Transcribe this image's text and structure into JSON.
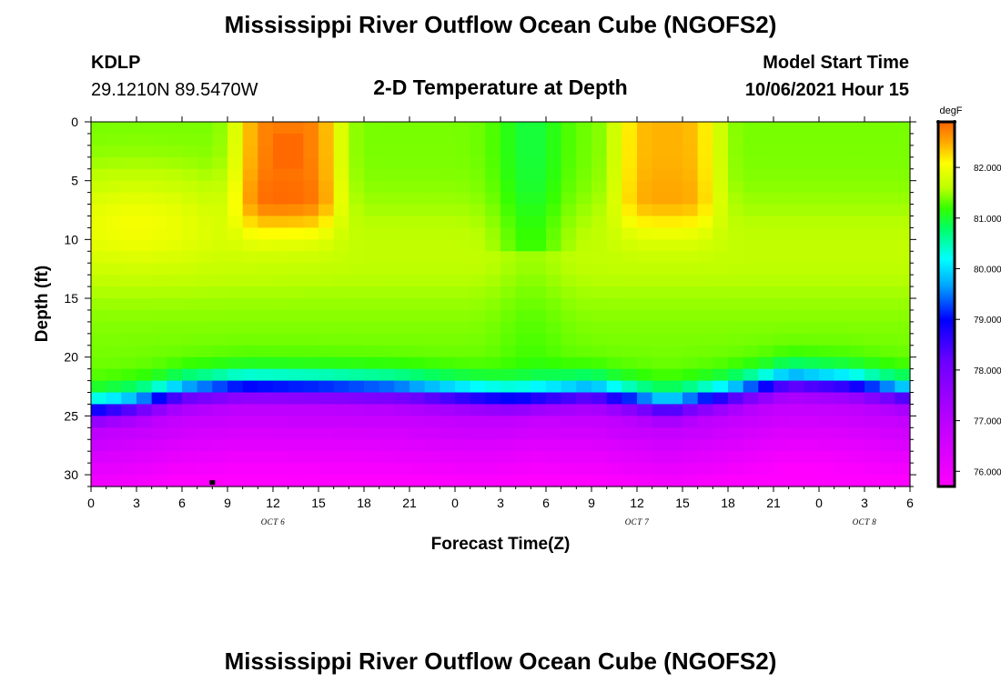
{
  "page": {
    "title_top": "Mississippi River Outflow Ocean Cube (NGOFS2)",
    "title_bottom": "Mississippi River Outflow Ocean Cube (NGOFS2)",
    "station_id": "KDLP",
    "station_coords": "29.1210N  89.5470W",
    "subtitle": "2-D Temperature at Depth",
    "model_start_label": "Model Start Time",
    "model_start_value": "10/06/2021 Hour 15"
  },
  "chart_data": {
    "type": "heatmap",
    "title": "2-D Temperature at Depth",
    "xlabel": "Forecast Time(Z)",
    "ylabel": "Depth (ft)",
    "x_range_hours": [
      0,
      54
    ],
    "y_range_ft": [
      0,
      31
    ],
    "x_tick_hours": [
      0,
      3,
      6,
      9,
      12,
      15,
      18,
      21,
      24,
      27,
      30,
      33,
      36,
      39,
      42,
      45,
      48,
      51,
      54
    ],
    "x_tick_labels": [
      "0",
      "3",
      "6",
      "9",
      "12",
      "15",
      "18",
      "21",
      "0",
      "3",
      "6",
      "9",
      "12",
      "15",
      "18",
      "21",
      "0",
      "3",
      "6"
    ],
    "date_labels": [
      {
        "hour": 12,
        "text": "OCT 6"
      },
      {
        "hour": 36,
        "text": "OCT 7"
      },
      {
        "hour": 51,
        "text": "OCT 8"
      }
    ],
    "y_ticks": [
      0,
      5,
      10,
      15,
      20,
      25,
      30
    ],
    "colorbar": {
      "unit": "degF",
      "range": [
        75.7,
        82.9
      ],
      "ticks": [
        76.0,
        77.0,
        78.0,
        79.0,
        80.0,
        81.0,
        82.0
      ],
      "tick_labels": [
        "76.000",
        "77.000",
        "78.000",
        "79.000",
        "80.000",
        "81.000",
        "82.000"
      ],
      "stops": [
        {
          "v": 75.7,
          "c": "#ff00ff"
        },
        {
          "v": 77.0,
          "c": "#bb00ff"
        },
        {
          "v": 78.2,
          "c": "#6a00ff"
        },
        {
          "v": 79.0,
          "c": "#0000ff"
        },
        {
          "v": 79.7,
          "c": "#00aaff"
        },
        {
          "v": 80.2,
          "c": "#00ffff"
        },
        {
          "v": 80.8,
          "c": "#00ff66"
        },
        {
          "v": 81.2,
          "c": "#33ff00"
        },
        {
          "v": 81.6,
          "c": "#bbff00"
        },
        {
          "v": 82.1,
          "c": "#ffff00"
        },
        {
          "v": 82.5,
          "c": "#ffaa00"
        },
        {
          "v": 82.9,
          "c": "#ff6600"
        }
      ]
    },
    "grid_hours_step": 1,
    "grid_depth_step_ft": 1,
    "surface_warm_peak_hours": [
      13,
      38
    ],
    "surface_warm_peak_degF": [
      82.9,
      82.55
    ],
    "thermocline_depth_ft": {
      "hours": [
        0,
        3,
        6,
        10,
        15,
        20,
        24,
        28,
        33,
        38,
        42,
        46,
        50,
        54
      ],
      "depth": [
        24.5,
        24.0,
        23.0,
        22.5,
        22.6,
        22.8,
        23.2,
        23.6,
        23.0,
        24.2,
        23.2,
        22.0,
        22.3,
        23.2
      ]
    },
    "bottom_marker": {
      "hour": 8,
      "depth_ft": 30.7
    }
  }
}
